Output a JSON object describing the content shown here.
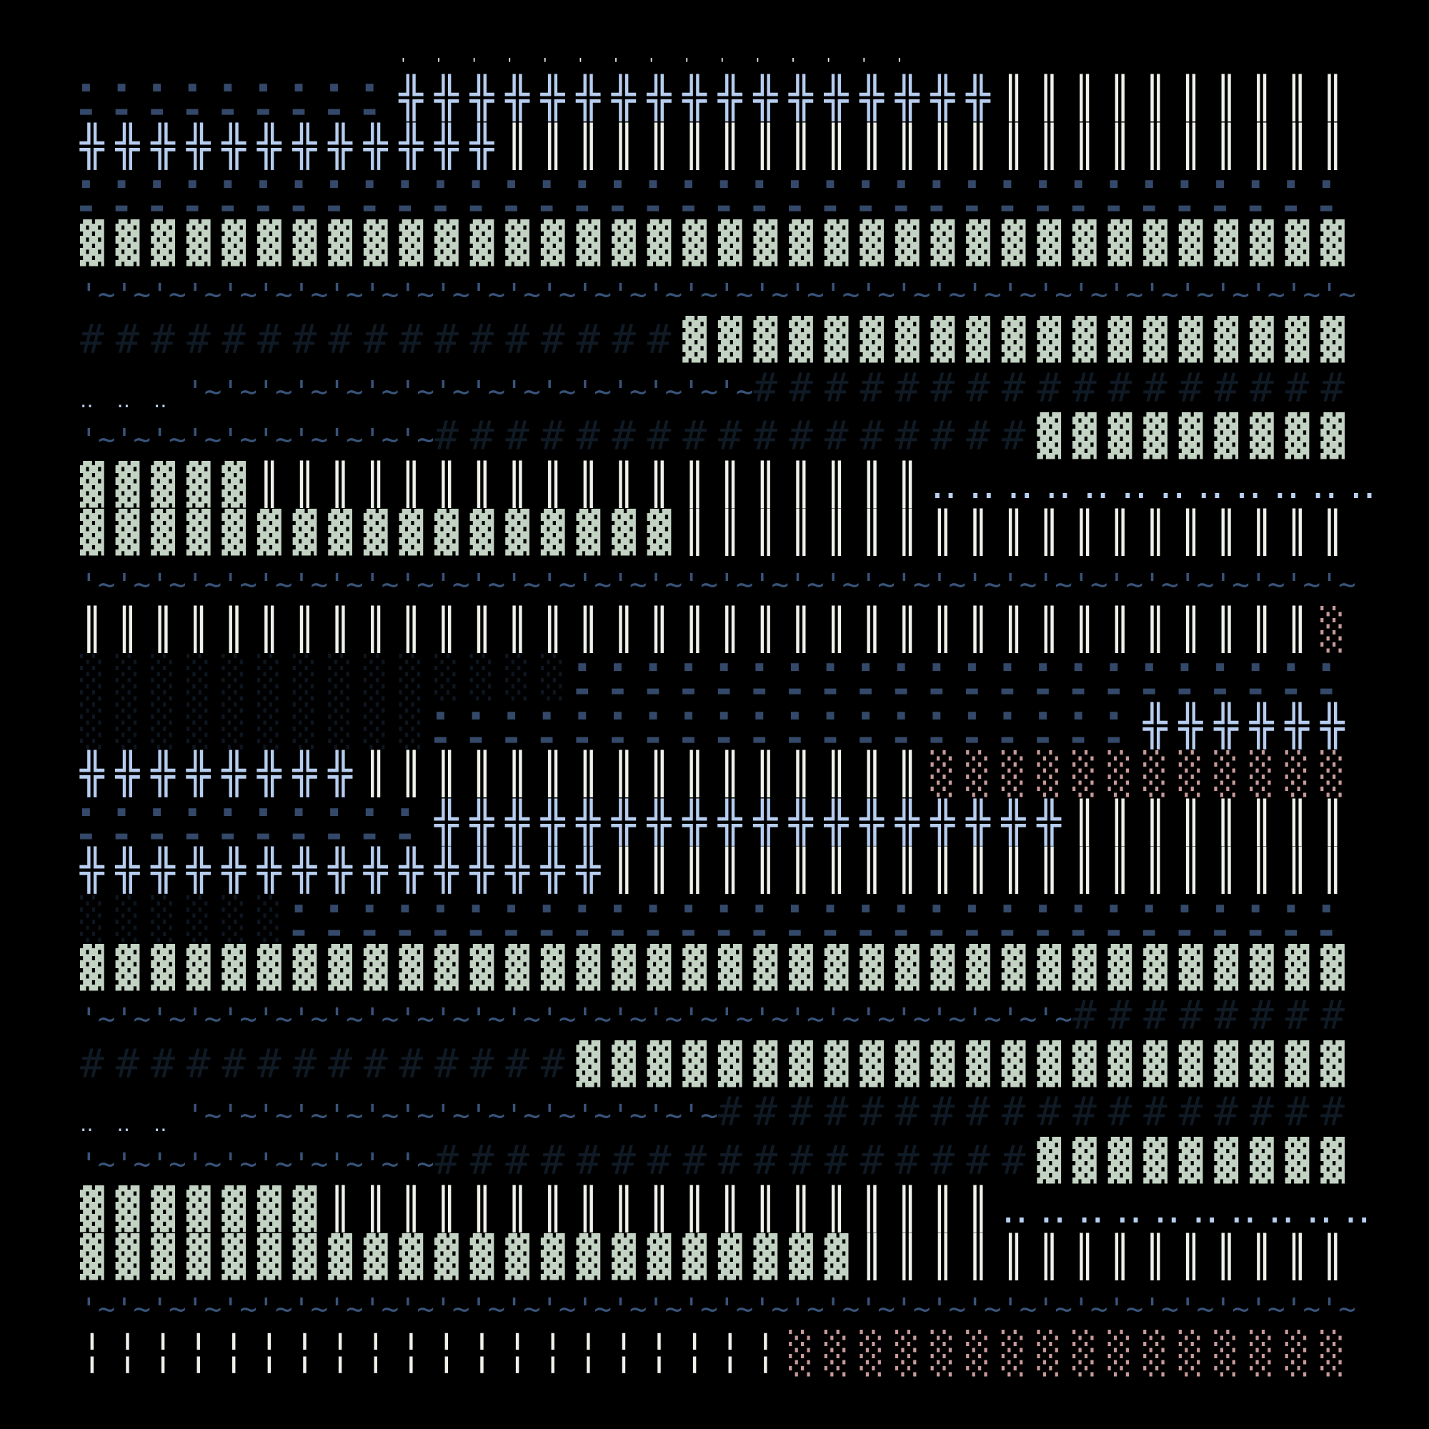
{
  "palette": {
    "navy": "#34496a",
    "ice": "#b6cdef",
    "sage": "#c3d3c3",
    "tilde": "#39547a",
    "hash": "#0f1a25",
    "dot": "#b8d0f0",
    "white": "#eef2ea",
    "pink": "#c99a9a",
    "dark": "#0d1620"
  },
  "rows": [
    {
      "runs": [
        {
          "g": "▪",
          "n": 9,
          "c": "navy"
        }
      ]
    },
    {
      "runs": [
        {
          "g": " ",
          "n": 9
        },
        {
          "g": "'",
          "n": 15,
          "c": "white"
        }
      ]
    },
    {
      "runs": [
        {
          "g": " ",
          "n": 9
        },
        {
          "g": "╬",
          "n": 17,
          "c": "ice"
        },
        {
          "g": "║",
          "n": 10,
          "c": "white"
        }
      ]
    },
    {
      "runs": [
        {
          "g": "▬",
          "n": 9,
          "c": "navy"
        }
      ]
    },
    {
      "runs": [
        {
          "g": "╬",
          "n": 12,
          "c": "ice"
        },
        {
          "g": "║",
          "n": 24,
          "c": "white"
        }
      ]
    },
    {
      "runs": [
        {
          "g": "▪",
          "n": 36,
          "c": "navy"
        }
      ]
    },
    {
      "runs": [
        {
          "g": "▬",
          "n": 36,
          "c": "navy"
        }
      ]
    },
    {
      "runs": [
        {
          "g": "▓",
          "n": 36,
          "c": "sage"
        }
      ]
    },
    {
      "runs": [
        {
          "g": "~",
          "n": 36,
          "c": "tilde"
        }
      ]
    },
    {
      "runs": [
        {
          "g": "'",
          "n": 36,
          "c": "tilde"
        }
      ]
    },
    {
      "runs": [
        {
          "g": "#",
          "n": 17,
          "c": "hash"
        },
        {
          "g": "▓",
          "n": 19,
          "c": "sage"
        }
      ]
    },
    {
      "runs": [
        {
          "g": " ",
          "n": 3
        },
        {
          "g": "~",
          "n": 16,
          "c": "tilde"
        },
        {
          "g": "#",
          "n": 17,
          "c": "hash"
        }
      ]
    },
    {
      "runs": [
        {
          "g": " ",
          "n": 3
        },
        {
          "g": "'",
          "n": 16,
          "c": "tilde"
        }
      ]
    },
    {
      "runs": [
        {
          "g": "‥",
          "n": 3,
          "c": "dot"
        }
      ]
    },
    {
      "runs": [
        {
          "g": "~",
          "n": 10,
          "c": "tilde"
        },
        {
          "g": "#",
          "n": 17,
          "c": "hash"
        },
        {
          "g": "▓",
          "n": 9,
          "c": "sage"
        }
      ]
    },
    {
      "runs": [
        {
          "g": "'",
          "n": 10,
          "c": "tilde"
        }
      ]
    },
    {
      "runs": [
        {
          "g": "▓",
          "n": 5,
          "c": "sage"
        },
        {
          "g": "║",
          "n": 19,
          "c": "white"
        },
        {
          "g": "‥",
          "n": 12,
          "c": "dot"
        }
      ]
    },
    {
      "runs": [
        {
          "g": "▓",
          "n": 17,
          "c": "sage"
        },
        {
          "g": "║",
          "n": 19,
          "c": "white"
        }
      ]
    },
    {
      "runs": [
        {
          "g": "~",
          "n": 36,
          "c": "tilde"
        }
      ]
    },
    {
      "runs": [
        {
          "g": "'",
          "n": 36,
          "c": "tilde"
        }
      ]
    },
    {
      "runs": [
        {
          "g": "║",
          "n": 35,
          "c": "white"
        },
        {
          "g": "░",
          "n": 1,
          "c": "pink"
        }
      ]
    },
    {
      "runs": [
        {
          "g": " ",
          "n": 14
        },
        {
          "g": "▪",
          "n": 22,
          "c": "navy"
        }
      ]
    },
    {
      "runs": [
        {
          "g": "░",
          "n": 14,
          "c": "dark"
        }
      ]
    },
    {
      "runs": [
        {
          "g": " ",
          "n": 14
        },
        {
          "g": "▬",
          "n": 22,
          "c": "navy"
        }
      ]
    },
    {
      "runs": [
        {
          "g": " ",
          "n": 10
        },
        {
          "g": "▪",
          "n": 20,
          "c": "navy"
        }
      ]
    },
    {
      "runs": [
        {
          "g": "░",
          "n": 10,
          "c": "dark"
        }
      ]
    },
    {
      "runs": [
        {
          "g": " ",
          "n": 30
        },
        {
          "g": "╬",
          "n": 6,
          "c": "ice"
        }
      ]
    },
    {
      "runs": [
        {
          "g": " ",
          "n": 10
        },
        {
          "g": "▬",
          "n": 20,
          "c": "navy"
        }
      ]
    },
    {
      "runs": [
        {
          "g": "╬",
          "n": 8,
          "c": "ice"
        },
        {
          "g": "║",
          "n": 16,
          "c": "white"
        },
        {
          "g": "░",
          "n": 12,
          "c": "pink"
        }
      ]
    },
    {
      "runs": [
        {
          "g": "▪",
          "n": 10,
          "c": "navy"
        }
      ]
    },
    {
      "runs": [
        {
          "g": " ",
          "n": 10
        },
        {
          "g": "╬",
          "n": 18,
          "c": "ice"
        },
        {
          "g": "║",
          "n": 8,
          "c": "white"
        }
      ]
    },
    {
      "runs": [
        {
          "g": "▬",
          "n": 10,
          "c": "navy"
        }
      ]
    },
    {
      "runs": [
        {
          "g": "╬",
          "n": 15,
          "c": "ice"
        },
        {
          "g": "║",
          "n": 21,
          "c": "white"
        }
      ]
    },
    {
      "runs": [
        {
          "g": " ",
          "n": 6
        },
        {
          "g": "▪",
          "n": 30,
          "c": "navy"
        }
      ]
    },
    {
      "runs": [
        {
          "g": "░",
          "n": 6,
          "c": "dark"
        }
      ]
    },
    {
      "runs": [
        {
          "g": " ",
          "n": 6
        },
        {
          "g": "▬",
          "n": 30,
          "c": "navy"
        }
      ]
    },
    {
      "runs": [
        {
          "g": "▓",
          "n": 36,
          "c": "sage"
        }
      ]
    },
    {
      "runs": [
        {
          "g": "~",
          "n": 28,
          "c": "tilde"
        },
        {
          "g": "#",
          "n": 8,
          "c": "hash"
        }
      ]
    },
    {
      "runs": [
        {
          "g": "'",
          "n": 28,
          "c": "tilde"
        }
      ]
    },
    {
      "runs": [
        {
          "g": "#",
          "n": 14,
          "c": "hash"
        },
        {
          "g": "▓",
          "n": 22,
          "c": "sage"
        }
      ]
    },
    {
      "runs": [
        {
          "g": " ",
          "n": 3
        },
        {
          "g": "~",
          "n": 15,
          "c": "tilde"
        },
        {
          "g": "#",
          "n": 18,
          "c": "hash"
        }
      ]
    },
    {
      "runs": [
        {
          "g": " ",
          "n": 3
        },
        {
          "g": "'",
          "n": 15,
          "c": "tilde"
        }
      ]
    },
    {
      "runs": [
        {
          "g": "‥",
          "n": 3,
          "c": "dot"
        }
      ]
    },
    {
      "runs": [
        {
          "g": "~",
          "n": 10,
          "c": "tilde"
        },
        {
          "g": "#",
          "n": 17,
          "c": "hash"
        },
        {
          "g": "▓",
          "n": 9,
          "c": "sage"
        }
      ]
    },
    {
      "runs": [
        {
          "g": "'",
          "n": 10,
          "c": "tilde"
        }
      ]
    },
    {
      "runs": [
        {
          "g": "▓",
          "n": 7,
          "c": "sage"
        },
        {
          "g": "║",
          "n": 19,
          "c": "white"
        },
        {
          "g": "‥",
          "n": 10,
          "c": "dot"
        }
      ]
    },
    {
      "runs": [
        {
          "g": "▓",
          "n": 22,
          "c": "sage"
        },
        {
          "g": "║",
          "n": 14,
          "c": "white"
        }
      ]
    },
    {
      "runs": [
        {
          "g": "~",
          "n": 36,
          "c": "tilde"
        }
      ]
    },
    {
      "runs": [
        {
          "g": "'",
          "n": 36,
          "c": "tilde"
        }
      ]
    },
    {
      "runs": [
        {
          "g": "╎",
          "n": 20,
          "c": "white"
        },
        {
          "g": "░",
          "n": 16,
          "c": "pink"
        }
      ]
    }
  ]
}
